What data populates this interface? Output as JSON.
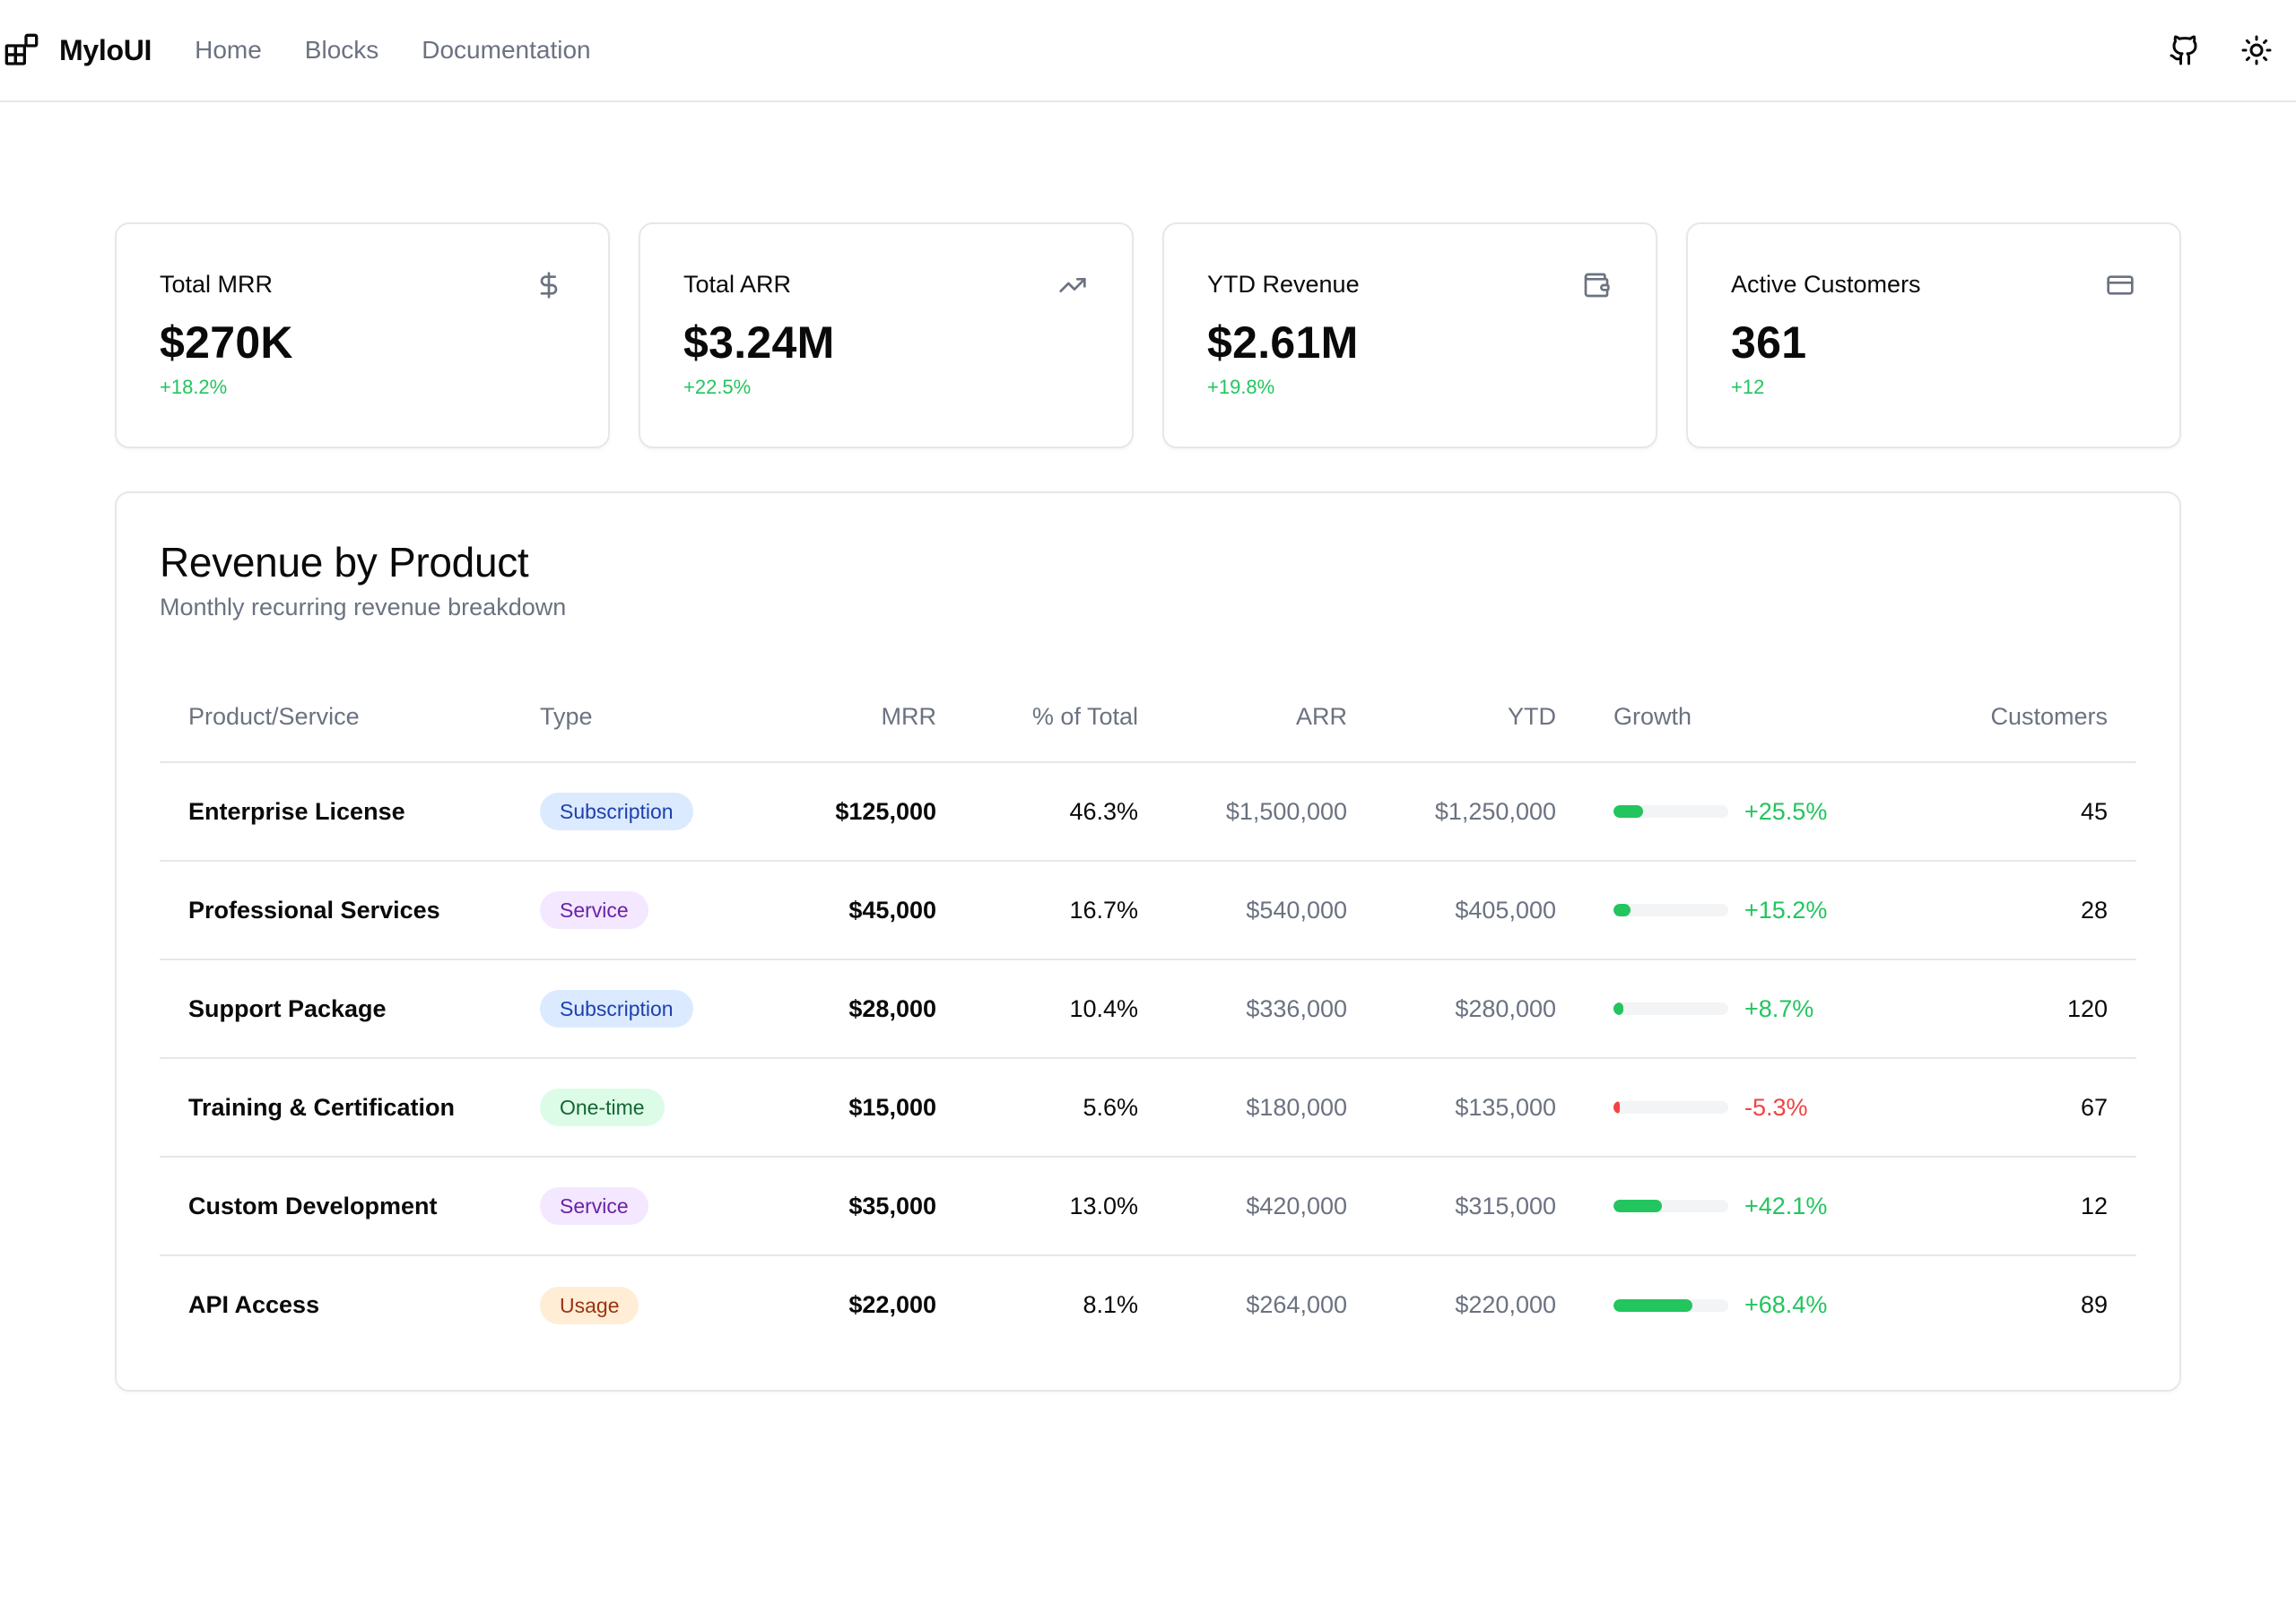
{
  "header": {
    "brand": "MyloUI",
    "nav": [
      "Home",
      "Blocks",
      "Documentation"
    ]
  },
  "stats": [
    {
      "label": "Total MRR",
      "value": "$270K",
      "change": "+18.2%",
      "icon": "dollar-icon"
    },
    {
      "label": "Total ARR",
      "value": "$3.24M",
      "change": "+22.5%",
      "icon": "trending-up-icon"
    },
    {
      "label": "YTD Revenue",
      "value": "$2.61M",
      "change": "+19.8%",
      "icon": "wallet-icon"
    },
    {
      "label": "Active Customers",
      "value": "361",
      "change": "+12",
      "icon": "credit-card-icon"
    }
  ],
  "revenue": {
    "title": "Revenue by Product",
    "subtitle": "Monthly recurring revenue breakdown",
    "columns": [
      "Product/Service",
      "Type",
      "MRR",
      "% of Total",
      "ARR",
      "YTD",
      "Growth",
      "Customers"
    ],
    "rows": [
      {
        "product": "Enterprise License",
        "type": "Subscription",
        "type_kind": "subscription",
        "mrr": "$125,000",
        "pct": "46.3%",
        "arr": "$1,500,000",
        "ytd": "$1,250,000",
        "growth": "+25.5%",
        "growth_value": 25.5,
        "customers": "45"
      },
      {
        "product": "Professional Services",
        "type": "Service",
        "type_kind": "service",
        "mrr": "$45,000",
        "pct": "16.7%",
        "arr": "$540,000",
        "ytd": "$405,000",
        "growth": "+15.2%",
        "growth_value": 15.2,
        "customers": "28"
      },
      {
        "product": "Support Package",
        "type": "Subscription",
        "type_kind": "subscription",
        "mrr": "$28,000",
        "pct": "10.4%",
        "arr": "$336,000",
        "ytd": "$280,000",
        "growth": "+8.7%",
        "growth_value": 8.7,
        "customers": "120"
      },
      {
        "product": "Training & Certification",
        "type": "One-time",
        "type_kind": "onetime",
        "mrr": "$15,000",
        "pct": "5.6%",
        "arr": "$180,000",
        "ytd": "$135,000",
        "growth": "-5.3%",
        "growth_value": -5.3,
        "customers": "67"
      },
      {
        "product": "Custom Development",
        "type": "Service",
        "type_kind": "service",
        "mrr": "$35,000",
        "pct": "13.0%",
        "arr": "$420,000",
        "ytd": "$315,000",
        "growth": "+42.1%",
        "growth_value": 42.1,
        "customers": "12"
      },
      {
        "product": "API Access",
        "type": "Usage",
        "type_kind": "usage",
        "mrr": "$22,000",
        "pct": "8.1%",
        "arr": "$264,000",
        "ytd": "$220,000",
        "growth": "+68.4%",
        "growth_value": 68.4,
        "customers": "89"
      }
    ]
  },
  "colors": {
    "positive": "#22c55e",
    "negative": "#ef4444",
    "border": "#e5e7eb",
    "muted": "#6b7280"
  }
}
